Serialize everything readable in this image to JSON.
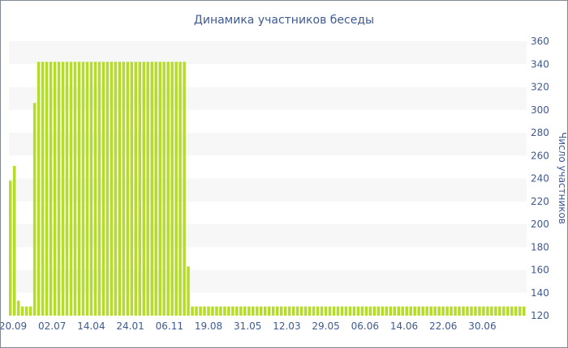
{
  "chart_data": {
    "type": "bar",
    "title": "Динамика участников беседы",
    "xlabel": "",
    "ylabel": "Число участников",
    "ylim": [
      120,
      360
    ],
    "yticks": [
      120,
      140,
      160,
      180,
      200,
      220,
      240,
      260,
      280,
      300,
      320,
      340,
      360
    ],
    "y_axis_side": "right",
    "grid": "alternating horizontal bands",
    "bar_color": "#b4dc28",
    "band_color": "#f7f7f7",
    "text_color": "#3e5a91",
    "xtick_labels": [
      "20.09",
      "02.07",
      "14.04",
      "24.01",
      "06.11",
      "19.08",
      "31.05",
      "12.03",
      "29.05",
      "06.06",
      "14.06",
      "22.06",
      "30.06"
    ],
    "values": [
      238,
      251,
      133,
      128,
      128,
      128,
      306,
      342,
      342,
      342,
      342,
      342,
      342,
      342,
      342,
      342,
      342,
      342,
      342,
      342,
      342,
      342,
      342,
      342,
      342,
      342,
      342,
      342,
      342,
      342,
      342,
      342,
      342,
      342,
      342,
      342,
      342,
      342,
      342,
      342,
      342,
      342,
      342,
      342,
      163,
      128,
      128,
      128,
      128,
      128,
      128,
      128,
      128,
      128,
      128,
      128,
      128,
      128,
      128,
      128,
      128,
      128,
      128,
      128,
      128,
      128,
      128,
      128,
      128,
      128,
      128,
      128,
      128,
      128,
      128,
      128,
      128,
      128,
      128,
      128,
      128,
      128,
      128,
      128,
      128,
      128,
      128,
      128,
      128,
      128,
      128,
      128,
      128,
      128,
      128,
      128,
      128,
      128,
      128,
      128,
      128,
      128,
      128,
      128,
      128,
      128,
      128,
      128,
      128,
      128,
      128,
      128,
      128,
      128,
      128,
      128,
      128,
      128,
      128,
      128,
      128,
      128,
      128,
      128,
      128,
      128,
      128,
      128
    ]
  }
}
